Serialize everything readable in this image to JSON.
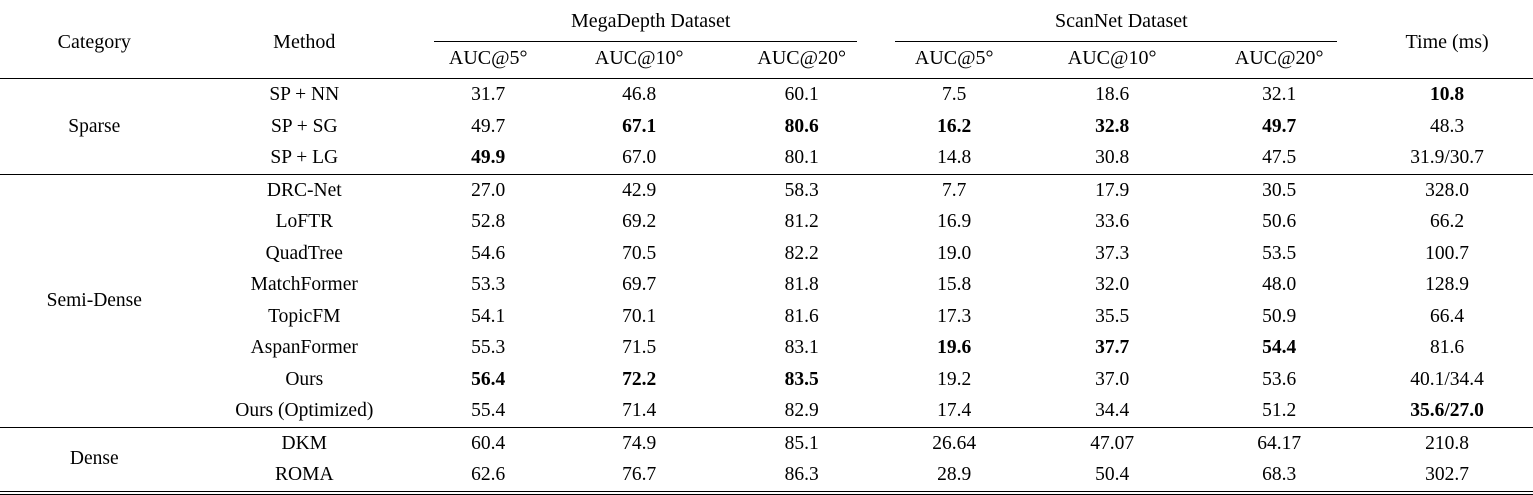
{
  "table": {
    "headers": {
      "category": "Category",
      "method": "Method",
      "megadepth": "MegaDepth Dataset",
      "scannet": "ScanNet Dataset",
      "time": "Time (ms)",
      "subheaders": [
        "AUC@5°",
        "AUC@10°",
        "AUC@20°",
        "AUC@5°",
        "AUC@10°",
        "AUC@20°"
      ]
    },
    "groups": [
      {
        "category": "Sparse",
        "rows": [
          {
            "method": "SP + NN",
            "values": [
              "31.7",
              "46.8",
              "60.1",
              "7.5",
              "18.6",
              "32.1",
              "10.8"
            ],
            "bold": [
              6
            ]
          },
          {
            "method": "SP + SG",
            "values": [
              "49.7",
              "67.1",
              "80.6",
              "16.2",
              "32.8",
              "49.7",
              "48.3"
            ],
            "bold": [
              1,
              2,
              3,
              4,
              5
            ]
          },
          {
            "method": "SP + LG",
            "values": [
              "49.9",
              "67.0",
              "80.1",
              "14.8",
              "30.8",
              "47.5",
              "31.9/30.7"
            ],
            "bold": [
              0
            ]
          }
        ]
      },
      {
        "category": "Semi-Dense",
        "rows": [
          {
            "method": "DRC-Net",
            "values": [
              "27.0",
              "42.9",
              "58.3",
              "7.7",
              "17.9",
              "30.5",
              "328.0"
            ],
            "bold": []
          },
          {
            "method": "LoFTR",
            "values": [
              "52.8",
              "69.2",
              "81.2",
              "16.9",
              "33.6",
              "50.6",
              "66.2"
            ],
            "bold": []
          },
          {
            "method": "QuadTree",
            "values": [
              "54.6",
              "70.5",
              "82.2",
              "19.0",
              "37.3",
              "53.5",
              "100.7"
            ],
            "bold": []
          },
          {
            "method": "MatchFormer",
            "values": [
              "53.3",
              "69.7",
              "81.8",
              "15.8",
              "32.0",
              "48.0",
              "128.9"
            ],
            "bold": []
          },
          {
            "method": "TopicFM",
            "values": [
              "54.1",
              "70.1",
              "81.6",
              "17.3",
              "35.5",
              "50.9",
              "66.4"
            ],
            "bold": []
          },
          {
            "method": "AspanFormer",
            "values": [
              "55.3",
              "71.5",
              "83.1",
              "19.6",
              "37.7",
              "54.4",
              "81.6"
            ],
            "bold": [
              3,
              4,
              5
            ]
          },
          {
            "method": "Ours",
            "values": [
              "56.4",
              "72.2",
              "83.5",
              "19.2",
              "37.0",
              "53.6",
              "40.1/34.4"
            ],
            "bold": [
              0,
              1,
              2
            ]
          },
          {
            "method": "Ours (Optimized)",
            "values": [
              "55.4",
              "71.4",
              "82.9",
              "17.4",
              "34.4",
              "51.2",
              "35.6/27.0"
            ],
            "bold": [
              6
            ]
          }
        ]
      },
      {
        "category": "Dense",
        "rows": [
          {
            "method": "DKM",
            "values": [
              "60.4",
              "74.9",
              "85.1",
              "26.64",
              "47.07",
              "64.17",
              "210.8"
            ],
            "bold": []
          },
          {
            "method": "ROMA",
            "values": [
              "62.6",
              "76.7",
              "86.3",
              "28.9",
              "50.4",
              "68.3",
              "302.7"
            ],
            "bold": []
          }
        ]
      }
    ]
  }
}
